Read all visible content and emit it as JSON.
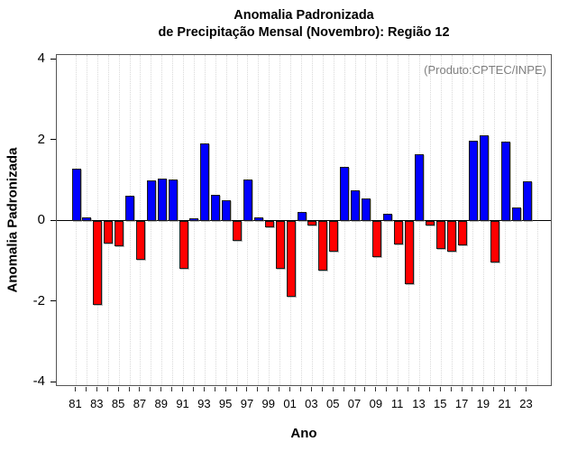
{
  "title": {
    "line1": "Anomalia Padronizada",
    "line2": "de Precipitação Mensal (Novembro): Região 12"
  },
  "annotation": "(Produto:CPTEC/INPE)",
  "axes": {
    "ylabel": "Anomalia Padronizada",
    "xlabel": "Ano",
    "yticks": [
      4,
      2,
      0,
      -2,
      -4
    ],
    "ytick_labels": [
      "4",
      "2",
      "0",
      "-2",
      "-4"
    ],
    "xtick_labels_shown": [
      "81",
      "83",
      "85",
      "87",
      "89",
      "91",
      "93",
      "95",
      "97",
      "99",
      "01",
      "03",
      "05",
      "07",
      "09",
      "11",
      "13",
      "15",
      "17",
      "19",
      "21",
      "23"
    ]
  },
  "colors": {
    "positive": "#0000ff",
    "negative": "#ff0000",
    "bar_border": "#1a1a1a",
    "grid": "#d9d9d9",
    "annotation": "#808080",
    "axis": "#000000"
  },
  "chart_data": {
    "type": "bar",
    "title": "Anomalia Padronizada de Precipitação Mensal (Novembro): Região 12",
    "xlabel": "Ano",
    "ylabel": "Anomalia Padronizada",
    "ylim": [
      -4,
      4
    ],
    "grid": "vertical-dotted-per-year",
    "legend": "none",
    "x": [
      "81",
      "82",
      "83",
      "84",
      "85",
      "86",
      "87",
      "88",
      "89",
      "90",
      "91",
      "92",
      "93",
      "94",
      "95",
      "96",
      "97",
      "98",
      "99",
      "00",
      "01",
      "02",
      "03",
      "04",
      "05",
      "06",
      "07",
      "08",
      "09",
      "10",
      "11",
      "12",
      "13",
      "14",
      "15",
      "16",
      "17",
      "18",
      "19",
      "20",
      "21",
      "22",
      "23"
    ],
    "values": [
      1.3,
      0.1,
      -2.07,
      -0.55,
      -0.62,
      0.62,
      -0.97,
      1.0,
      1.05,
      1.02,
      -1.18,
      0.06,
      1.92,
      0.65,
      0.52,
      -0.5,
      1.03,
      0.1,
      -0.16,
      -1.18,
      -1.88,
      0.23,
      -0.12,
      -1.24,
      -0.75,
      1.35,
      0.77,
      0.56,
      -0.9,
      0.18,
      -0.59,
      -1.57,
      1.66,
      -0.12,
      -0.7,
      -0.76,
      -0.61,
      2.0,
      2.13,
      -1.02,
      1.97,
      0.34,
      0.98
    ],
    "positive_color": "#0000ff",
    "negative_color": "#ff0000"
  }
}
